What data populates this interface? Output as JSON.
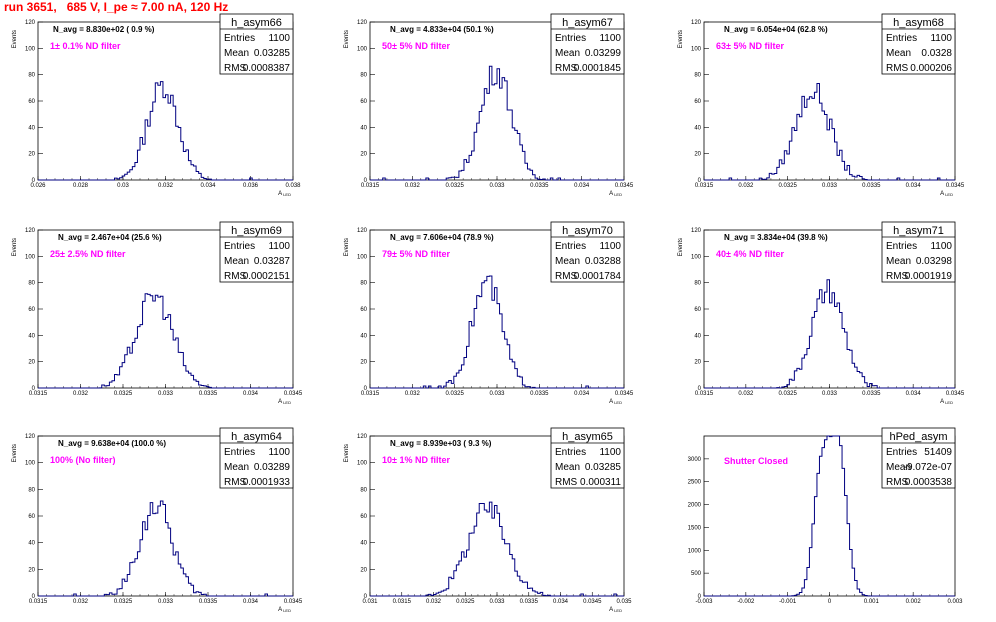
{
  "title": "run 3651,   685 V, I_pe ≈ 7.00 nA, 120 Hz",
  "chart_data": [
    {
      "type": "bar",
      "name": "h_asym66",
      "n_avg": "N_avg = 8.830e+02 ( 0.9 %)",
      "filter": "1± 0.1% ND filter",
      "stats": [
        [
          "Entries",
          "1100"
        ],
        [
          "Mean",
          "0.03285"
        ],
        [
          "RMS",
          "0.0008387"
        ]
      ],
      "xlabel": "A_LED",
      "ylabel": "Events",
      "xlim": [
        0.026,
        0.04
      ],
      "ylim": [
        0,
        120
      ],
      "xticks": [
        "0.026",
        "0.028",
        "0.03",
        "0.032",
        "0.034",
        "0.036",
        "0.038"
      ],
      "yticks": [
        "0",
        "20",
        "40",
        "60",
        "80",
        "100",
        "120"
      ],
      "mean": 0.03285,
      "sigma": 0.00084,
      "peak": 72
    },
    {
      "type": "bar",
      "name": "h_asym67",
      "n_avg": "N_avg = 4.833e+04 (50.1 %)",
      "filter": "50± 5% ND filter",
      "stats": [
        [
          "Entries",
          "1100"
        ],
        [
          "Mean",
          "0.03299"
        ],
        [
          "RMS",
          "0.0001845"
        ]
      ],
      "xlabel": "A_LED",
      "ylabel": "Events",
      "xlim": [
        0.0315,
        0.0345
      ],
      "ylim": [
        0,
        120
      ],
      "xticks": [
        "0.0315",
        "0.032",
        "0.0325",
        "0.033",
        "0.0335",
        "0.034",
        "0.0345"
      ],
      "yticks": [
        "0",
        "20",
        "40",
        "60",
        "80",
        "100",
        "120"
      ],
      "mean": 0.03299,
      "sigma": 0.000185,
      "peak": 83
    },
    {
      "type": "bar",
      "name": "h_asym68",
      "n_avg": "N_avg = 6.054e+04 (62.8 %)",
      "filter": "63± 5% ND filter",
      "stats": [
        [
          "Entries",
          "1100"
        ],
        [
          "Mean",
          "0.0328"
        ],
        [
          "RMS",
          "0.000206"
        ]
      ],
      "xlabel": "A_LED",
      "ylabel": "Events",
      "xlim": [
        0.0315,
        0.0345
      ],
      "ylim": [
        0,
        120
      ],
      "xticks": [
        "0.0315",
        "0.032",
        "0.0325",
        "0.033",
        "0.0335",
        "0.034",
        "0.0345"
      ],
      "yticks": [
        "0",
        "20",
        "40",
        "60",
        "80",
        "100",
        "120"
      ],
      "mean": 0.0328,
      "sigma": 0.000206,
      "peak": 68
    },
    {
      "type": "bar",
      "name": "h_asym69",
      "n_avg": "N_avg = 2.467e+04 (25.6 %)",
      "filter": "25± 2.5% ND filter",
      "stats": [
        [
          "Entries",
          "1100"
        ],
        [
          "Mean",
          "0.03287"
        ],
        [
          "RMS",
          "0.0002151"
        ]
      ],
      "xlabel": "A_LED",
      "ylabel": "Events",
      "xlim": [
        0.0315,
        0.0345
      ],
      "ylim": [
        0,
        120
      ],
      "xticks": [
        "0.0315",
        "0.032",
        "0.0325",
        "0.033",
        "0.0335",
        "0.034",
        "0.0345"
      ],
      "yticks": [
        "0",
        "20",
        "40",
        "60",
        "80",
        "100",
        "120"
      ],
      "mean": 0.03287,
      "sigma": 0.000215,
      "peak": 70
    },
    {
      "type": "bar",
      "name": "h_asym70",
      "n_avg": "N_avg = 7.606e+04 (78.9 %)",
      "filter": "79± 5% ND filter",
      "stats": [
        [
          "Entries",
          "1100"
        ],
        [
          "Mean",
          "0.03288"
        ],
        [
          "RMS",
          "0.0001784"
        ]
      ],
      "xlabel": "A_LED",
      "ylabel": "Events",
      "xlim": [
        0.0315,
        0.0345
      ],
      "ylim": [
        0,
        120
      ],
      "xticks": [
        "0.0315",
        "0.032",
        "0.0325",
        "0.033",
        "0.0335",
        "0.034",
        "0.0345"
      ],
      "yticks": [
        "0",
        "20",
        "40",
        "60",
        "80",
        "100",
        "120"
      ],
      "mean": 0.03288,
      "sigma": 0.000178,
      "peak": 80
    },
    {
      "type": "bar",
      "name": "h_asym71",
      "n_avg": "N_avg = 3.834e+04 (39.8 %)",
      "filter": "40± 4% ND filter",
      "stats": [
        [
          "Entries",
          "1100"
        ],
        [
          "Mean",
          "0.03298"
        ],
        [
          "RMS",
          "0.0001919"
        ]
      ],
      "xlabel": "A_LED",
      "ylabel": "Events",
      "xlim": [
        0.0315,
        0.0345
      ],
      "ylim": [
        0,
        120
      ],
      "xticks": [
        "0.0315",
        "0.032",
        "0.0325",
        "0.033",
        "0.0335",
        "0.034",
        "0.0345"
      ],
      "yticks": [
        "0",
        "20",
        "40",
        "60",
        "80",
        "100",
        "120"
      ],
      "mean": 0.03298,
      "sigma": 0.000192,
      "peak": 73
    },
    {
      "type": "bar",
      "name": "h_asym64",
      "n_avg": "N_avg = 9.638e+04 (100.0 %)",
      "filter": "100% (No filter)",
      "stats": [
        [
          "Entries",
          "1100"
        ],
        [
          "Mean",
          "0.03289"
        ],
        [
          "RMS",
          "0.0001933"
        ]
      ],
      "xlabel": "A_LED",
      "ylabel": "Events",
      "xlim": [
        0.0315,
        0.0345
      ],
      "ylim": [
        0,
        120
      ],
      "xticks": [
        "0.0315",
        "0.032",
        "0.0325",
        "0.033",
        "0.0335",
        "0.034",
        "0.0345"
      ],
      "yticks": [
        "0",
        "20",
        "40",
        "60",
        "80",
        "100",
        "120"
      ],
      "mean": 0.03289,
      "sigma": 0.000193,
      "peak": 68
    },
    {
      "type": "bar",
      "name": "h_asym65",
      "n_avg": "N_avg = 8.939e+03 ( 9.3 %)",
      "filter": "10± 1% ND filter",
      "stats": [
        [
          "Entries",
          "1100"
        ],
        [
          "Mean",
          "0.03285"
        ],
        [
          "RMS",
          "0.000311"
        ]
      ],
      "xlabel": "A_LED",
      "ylabel": "Events",
      "xlim": [
        0.031,
        0.035
      ],
      "ylim": [
        0,
        120
      ],
      "xticks": [
        "0.031",
        "0.0315",
        "0.032",
        "0.0325",
        "0.033",
        "0.0335",
        "0.034",
        "0.0345",
        "0.035"
      ],
      "yticks": [
        "0",
        "20",
        "40",
        "60",
        "80",
        "100",
        "120"
      ],
      "mean": 0.03285,
      "sigma": 0.000311,
      "peak": 65
    },
    {
      "type": "bar",
      "name": "hPed_asym",
      "n_avg": "",
      "filter": "Shutter Closed",
      "stats": [
        [
          "Entries",
          "51409"
        ],
        [
          "Mean",
          "-9.072e-07"
        ],
        [
          "RMS",
          "0.0003538"
        ]
      ],
      "xlabel": "",
      "ylabel": "",
      "xlim": [
        -0.003,
        0.003
      ],
      "ylim": [
        0,
        3500
      ],
      "xticks": [
        "-0.003",
        "-0.002",
        "-0.001",
        "0",
        "0.001",
        "0.002",
        "0.003"
      ],
      "yticks": [
        "0",
        "500",
        "1000",
        "1500",
        "2000",
        "2500",
        "3000"
      ],
      "mean": 0.0,
      "sigma": 0.00035,
      "peak": 3200,
      "bimodal": true
    }
  ]
}
